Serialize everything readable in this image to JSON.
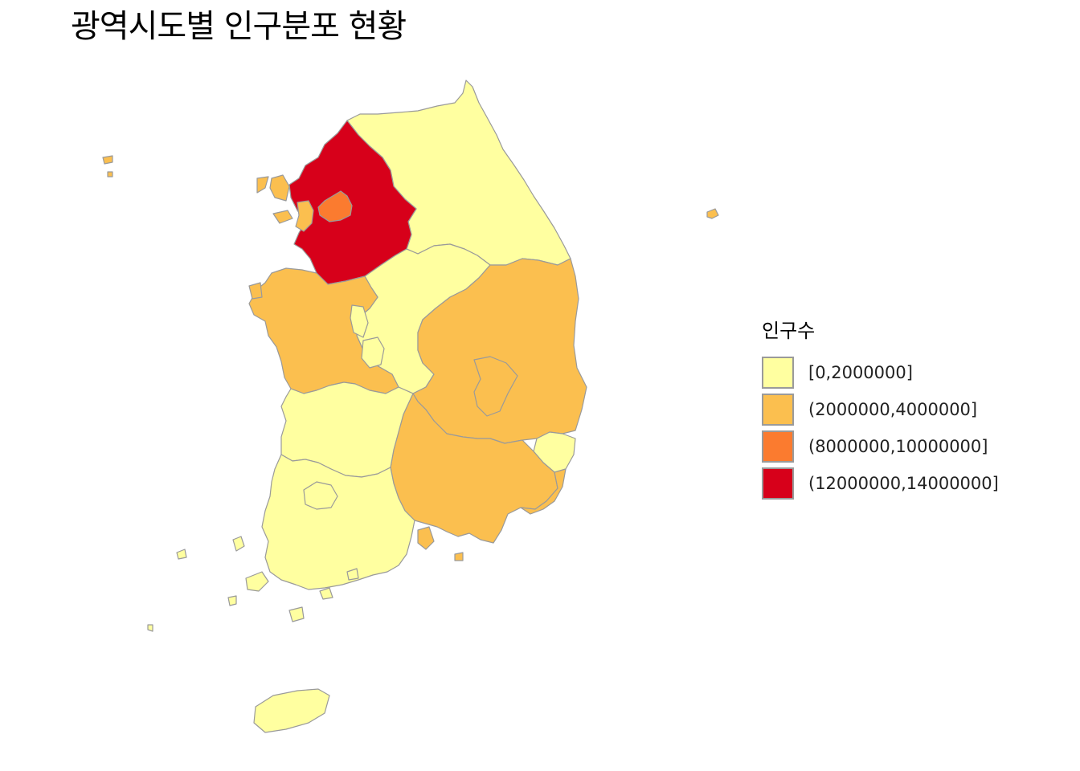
{
  "title": "광역시도별 인구분포 현황",
  "legend": {
    "title": "인구수",
    "items": [
      {
        "label": "[0,2000000]",
        "color": "#FFFFA0"
      },
      {
        "label": "(2000000,4000000]",
        "color": "#FBBF4F"
      },
      {
        "label": "(8000000,10000000]",
        "color": "#FB7B2F"
      },
      {
        "label": "(12000000,14000000]",
        "color": "#D7001A"
      }
    ]
  },
  "colors": {
    "c1": "#FFFFA0",
    "c2": "#FBBF4F",
    "c3": "#FB7B2F",
    "c4": "#D7001A",
    "border": "#9a9a9a"
  }
}
